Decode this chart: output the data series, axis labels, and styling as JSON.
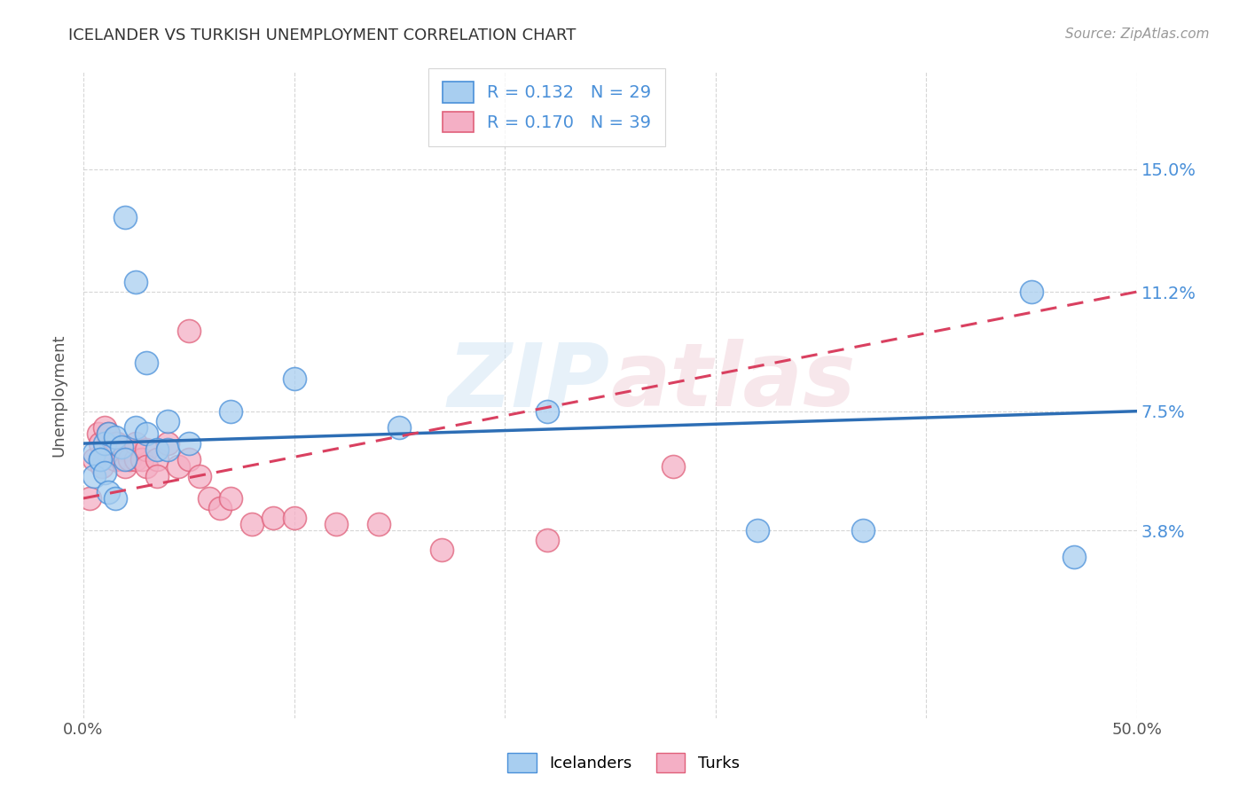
{
  "title": "ICELANDER VS TURKISH UNEMPLOYMENT CORRELATION CHART",
  "source": "Source: ZipAtlas.com",
  "xlabel": "",
  "ylabel": "Unemployment",
  "xlim": [
    0.0,
    0.5
  ],
  "ylim": [
    -0.02,
    0.18
  ],
  "yticks": [
    0.038,
    0.075,
    0.112,
    0.15
  ],
  "ytick_labels": [
    "3.8%",
    "7.5%",
    "11.2%",
    "15.0%"
  ],
  "xticks": [
    0.0,
    0.1,
    0.2,
    0.3,
    0.4,
    0.5
  ],
  "xtick_labels": [
    "0.0%",
    "",
    "",
    "",
    "",
    "50.0%"
  ],
  "background_color": "#ffffff",
  "watermark": "ZIPatlas",
  "icelander_color": "#a8cef0",
  "turk_color": "#f4afc5",
  "icelander_edge_color": "#4a90d9",
  "turk_edge_color": "#e0607a",
  "icelander_line_color": "#2d6eb5",
  "turk_line_color": "#d94060",
  "icelander_R": 0.132,
  "icelander_N": 29,
  "turk_R": 0.17,
  "turk_N": 39,
  "icelander_x": [
    0.02,
    0.025,
    0.03,
    0.04,
    0.005,
    0.008,
    0.01,
    0.012,
    0.015,
    0.018,
    0.02,
    0.025,
    0.03,
    0.035,
    0.04,
    0.05,
    0.07,
    0.1,
    0.15,
    0.22,
    0.32,
    0.37,
    0.45,
    0.47,
    0.005,
    0.008,
    0.01,
    0.012,
    0.015
  ],
  "icelander_y": [
    0.135,
    0.115,
    0.09,
    0.072,
    0.062,
    0.06,
    0.065,
    0.068,
    0.067,
    0.064,
    0.06,
    0.07,
    0.068,
    0.063,
    0.063,
    0.065,
    0.075,
    0.085,
    0.07,
    0.075,
    0.038,
    0.038,
    0.112,
    0.03,
    0.055,
    0.06,
    0.056,
    0.05,
    0.048
  ],
  "turk_x": [
    0.003,
    0.005,
    0.007,
    0.008,
    0.009,
    0.01,
    0.01,
    0.012,
    0.013,
    0.015,
    0.015,
    0.016,
    0.018,
    0.02,
    0.02,
    0.022,
    0.025,
    0.025,
    0.028,
    0.03,
    0.03,
    0.035,
    0.035,
    0.04,
    0.045,
    0.05,
    0.055,
    0.06,
    0.065,
    0.07,
    0.08,
    0.09,
    0.1,
    0.12,
    0.14,
    0.17,
    0.22,
    0.28,
    0.05
  ],
  "turk_y": [
    0.048,
    0.06,
    0.068,
    0.065,
    0.058,
    0.07,
    0.063,
    0.068,
    0.064,
    0.065,
    0.06,
    0.065,
    0.06,
    0.063,
    0.058,
    0.06,
    0.06,
    0.065,
    0.06,
    0.063,
    0.058,
    0.06,
    0.055,
    0.065,
    0.058,
    0.06,
    0.055,
    0.048,
    0.045,
    0.048,
    0.04,
    0.042,
    0.042,
    0.04,
    0.04,
    0.032,
    0.035,
    0.058,
    0.1
  ],
  "ice_line_x0": 0.0,
  "ice_line_y0": 0.065,
  "ice_line_x1": 0.5,
  "ice_line_y1": 0.075,
  "turk_line_x0": 0.0,
  "turk_line_y0": 0.048,
  "turk_line_x1": 0.5,
  "turk_line_y1": 0.112
}
